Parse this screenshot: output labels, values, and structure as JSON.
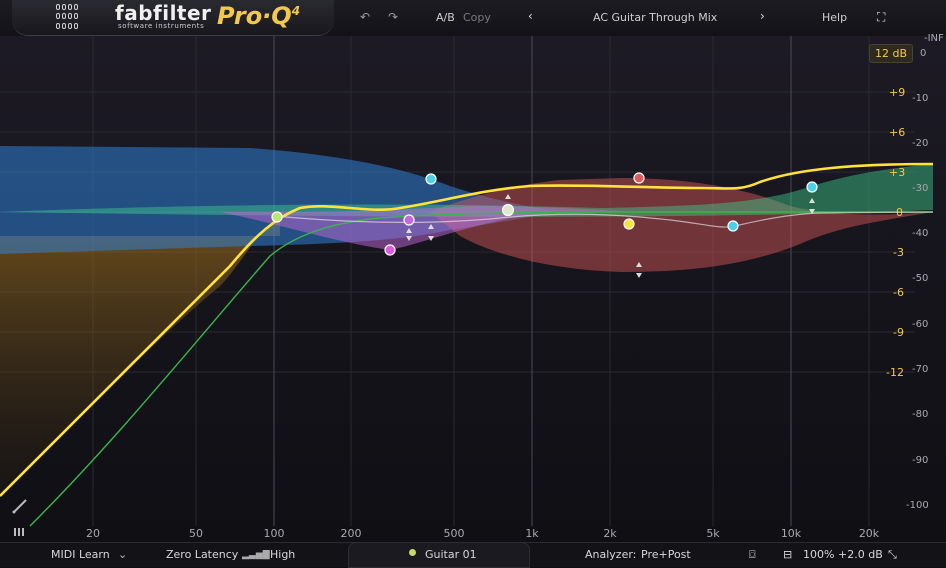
{
  "brand": {
    "name": "fabfilter",
    "tagline": "software instruments",
    "product": "Pro·Q",
    "version": "4"
  },
  "toolbar": {
    "ab": "A/B",
    "copy": "Copy",
    "preset": "AC Guitar Through Mix",
    "help": "Help"
  },
  "range": "12 dB",
  "freq_labels": [
    "20",
    "50",
    "100",
    "200",
    "500",
    "1k",
    "2k",
    "5k",
    "10k",
    "20k"
  ],
  "gain_labels": [
    "+9",
    "+6",
    "+3",
    "0",
    "-3",
    "-6",
    "-9",
    "-12"
  ],
  "db_labels": [
    "-INF",
    "0",
    "-10",
    "-20",
    "-30",
    "-40",
    "-50",
    "-60",
    "-70",
    "-80",
    "-90",
    "-100"
  ],
  "bottom": {
    "midi": "MIDI Learn",
    "latency": "Zero Latency",
    "quality": "High",
    "instance": "Guitar 01",
    "analyzer_label": "Analyzer:",
    "analyzer_value": "Pre+Post",
    "zoom": "100%",
    "gain": "+2.0 dB"
  },
  "colors": {
    "accent": "#f2c94c",
    "band_blue": "#2f7fd6",
    "band_red": "#e05a5a",
    "band_green": "#3ecf8e",
    "band_purple": "#c46ad8",
    "curve": "#ffe23b"
  },
  "icons": [
    "undo-icon",
    "redo-icon",
    "chevron-left-icon",
    "chevron-right-icon",
    "fullscreen-icon",
    "chevron-down-icon",
    "quality-bars-icon",
    "camera-icon",
    "layout-icon",
    "resize-icon",
    "piano-icon",
    "pen-icon"
  ]
}
